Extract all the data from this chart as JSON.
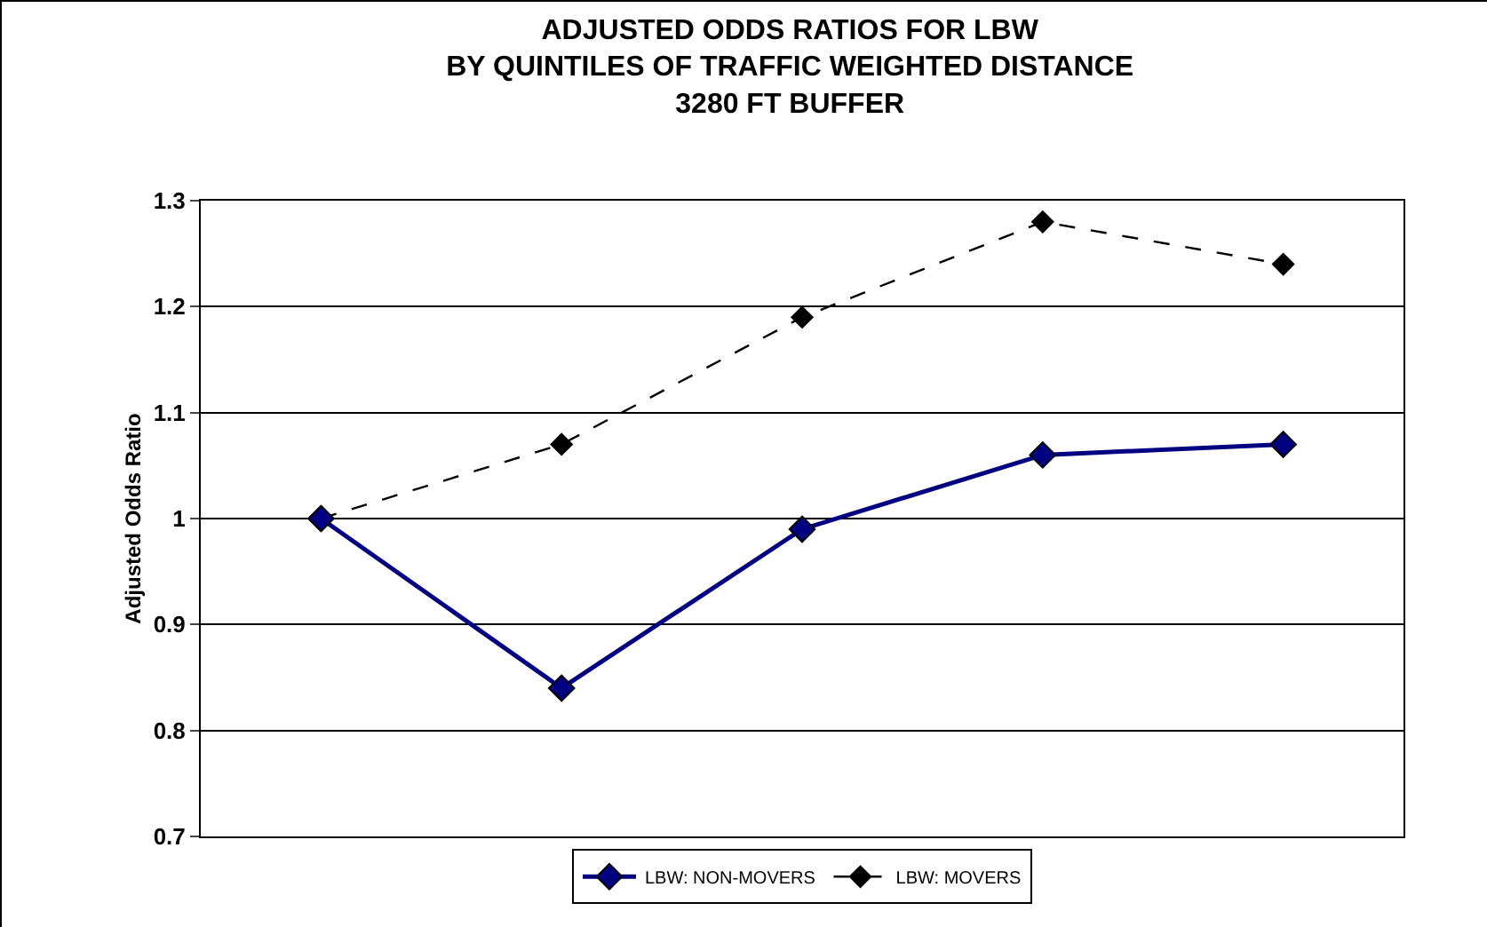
{
  "chart_data": {
    "type": "line",
    "title": "ADJUSTED ODDS RATIOS FOR LBW\nBY QUINTILES OF TRAFFIC WEIGHTED DISTANCE\n3280 FT BUFFER",
    "ylabel": "Adjusted Odds Ratio",
    "categories": [
      null,
      null,
      null,
      null,
      null
    ],
    "series": [
      {
        "name": "LBW: NON-MOVERS",
        "color": "#000080",
        "line_style": "solid",
        "values": [
          1,
          0.84,
          0.99,
          1.06,
          1.07
        ]
      },
      {
        "name": "LBW: MOVERS",
        "color": "#000000",
        "line_style": "dashed",
        "values": [
          1,
          1.07,
          1.19,
          1.28,
          1.24
        ]
      }
    ],
    "ylim": [
      0.7,
      1.3
    ],
    "yticks": [
      0.7,
      0.8,
      0.9,
      1,
      1.1,
      1.2,
      1.3
    ],
    "grid": "y",
    "legend": "bottom",
    "marker": "diamond"
  }
}
